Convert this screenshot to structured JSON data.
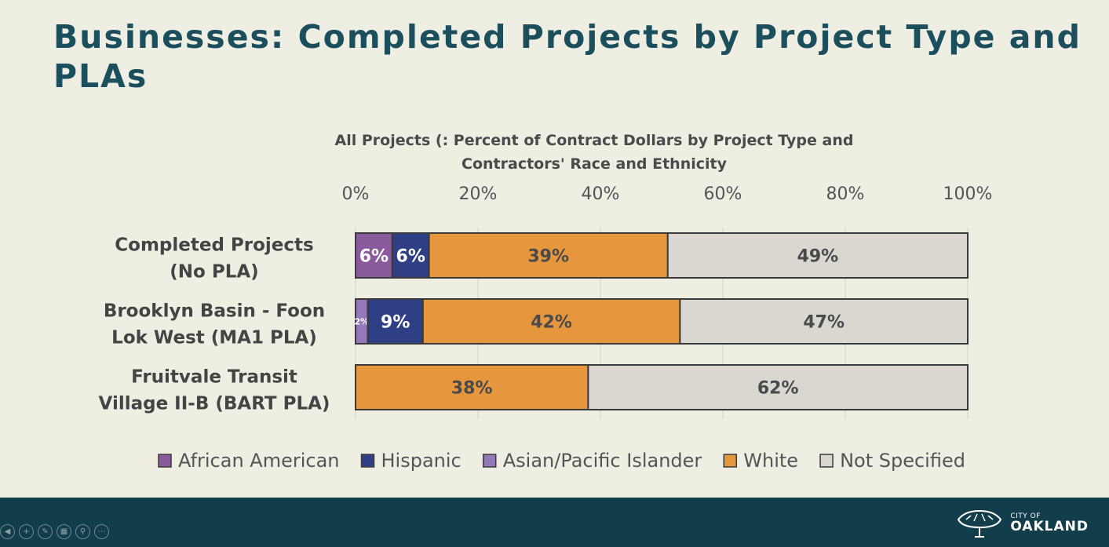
{
  "slide": {
    "title": "Businesses: Completed Projects by Project Type and PLAs"
  },
  "chart_data": {
    "type": "bar",
    "orientation": "horizontal",
    "stacked": true,
    "title_lines": [
      "All Projects (: Percent of Contract Dollars by Project Type and",
      "Contractors' Race and Ethnicity"
    ],
    "categories": [
      [
        "Completed Projects",
        "(No PLA)"
      ],
      [
        "Brooklyn Basin - Foon",
        "Lok West (MA1 PLA)"
      ],
      [
        "Fruitvale Transit",
        "Village II-B (BART PLA)"
      ]
    ],
    "series": [
      {
        "name": "African American",
        "color": "#8a5a9c",
        "values": [
          6,
          0,
          0
        ],
        "labels": [
          "6%",
          "",
          ""
        ]
      },
      {
        "name": "Hispanic",
        "color": "#2e3f86",
        "values": [
          0,
          0,
          0
        ],
        "labels": [
          "",
          "",
          ""
        ]
      },
      {
        "name": "Asian/Pacific Islander",
        "color": "#9478b8",
        "values": [
          0,
          2,
          0
        ],
        "labels": [
          "",
          "2%",
          ""
        ]
      },
      {
        "name": "Hispanic",
        "color": "#2e3f86",
        "values": [
          6,
          9,
          0
        ],
        "labels": [
          "6%",
          "9%",
          ""
        ]
      },
      {
        "name": "White",
        "color": "#e6963c",
        "values": [
          39,
          42,
          38
        ],
        "labels": [
          "39%",
          "42%",
          "38%"
        ]
      },
      {
        "name": "Not Specified",
        "color": "#d9d7d0",
        "values": [
          49,
          47,
          62
        ],
        "labels": [
          "49%",
          "47%",
          "62%"
        ]
      }
    ],
    "legend": [
      {
        "name": "African American",
        "color": "#8a5a9c"
      },
      {
        "name": "Hispanic",
        "color": "#2e3f86"
      },
      {
        "name": "Asian/Pacific Islander",
        "color": "#9478b8"
      },
      {
        "name": "White",
        "color": "#e6963c"
      },
      {
        "name": "Not Specified",
        "color": "#d9d7d0"
      }
    ],
    "xlim": [
      0,
      100
    ],
    "xticks": [
      "0%",
      "20%",
      "40%",
      "60%",
      "80%",
      "100%"
    ],
    "legend_position": "bottom"
  },
  "footer": {
    "controls": [
      "◀",
      "+",
      "✎",
      "▦",
      "⚲",
      "⋯"
    ],
    "logo_small": "CITY OF",
    "logo_big": "OAKLAND"
  }
}
